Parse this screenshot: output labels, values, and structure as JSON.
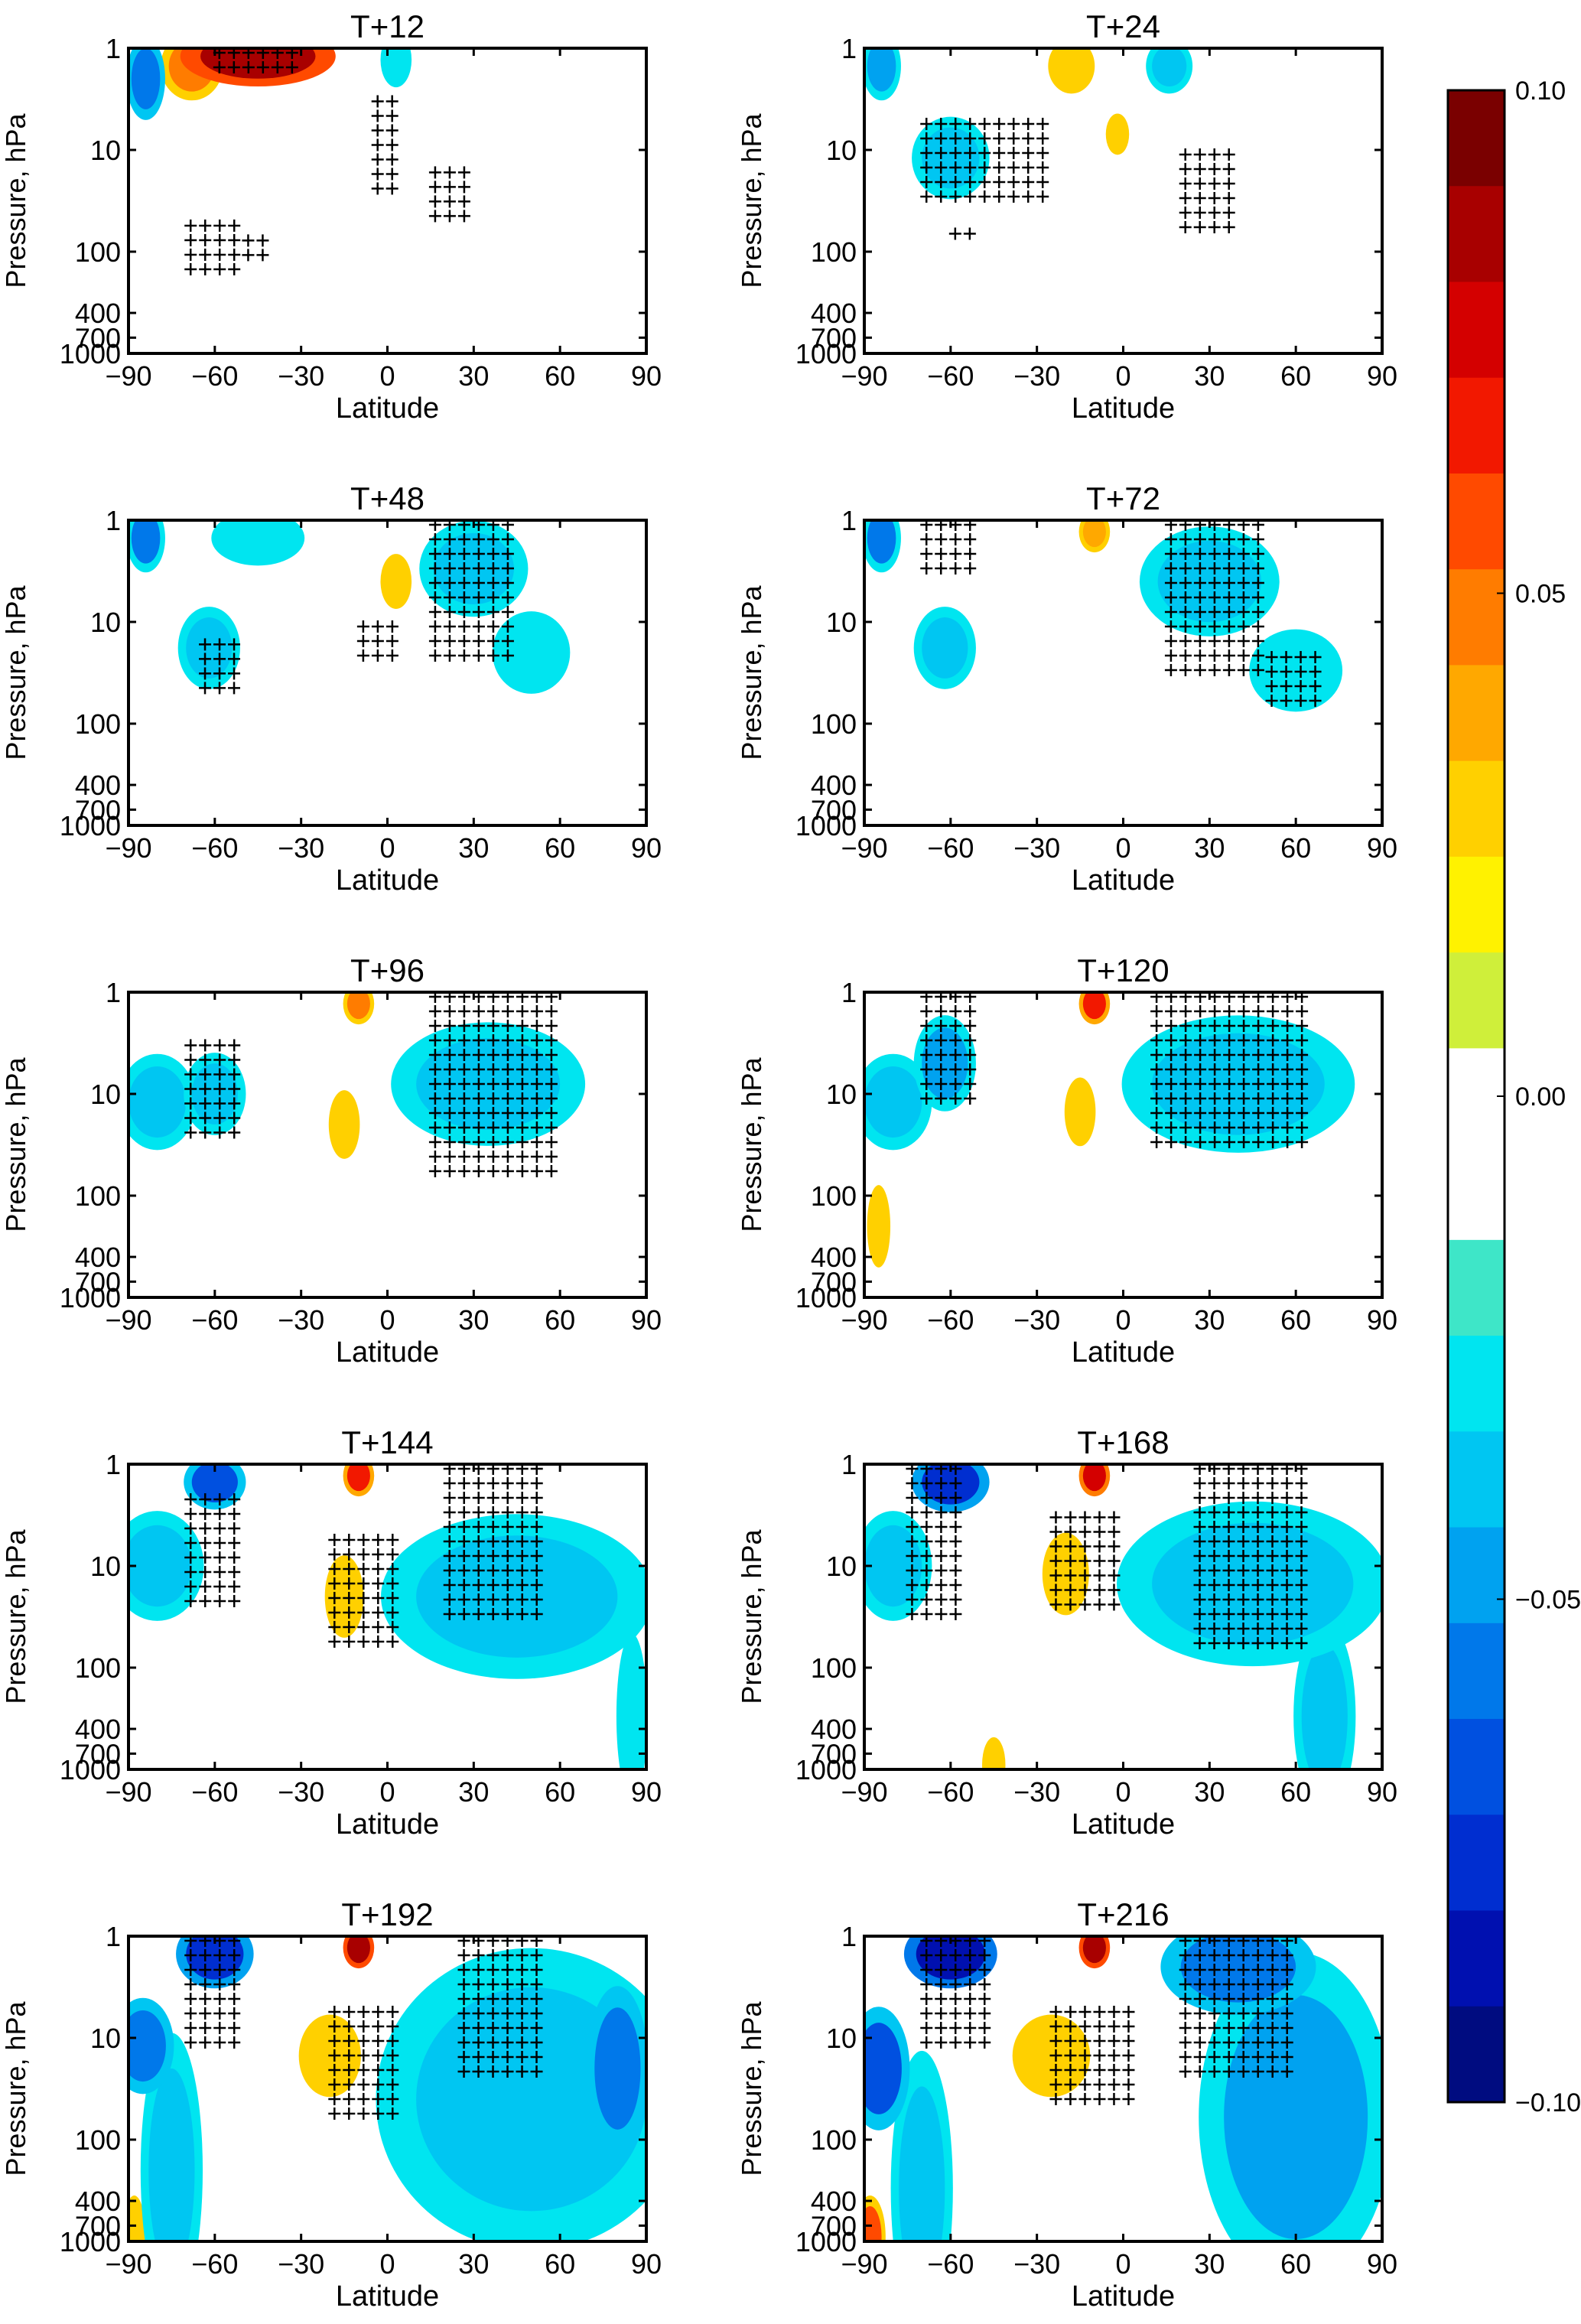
{
  "chart_data": {
    "type": "heatmap",
    "xlabel": "Latitude",
    "ylabel": "Pressure, hPa",
    "xlim": [
      -90,
      90
    ],
    "ylim": [
      1000,
      1
    ],
    "y_scale": "log",
    "x_ticks": [
      "−90",
      "−60",
      "−30",
      "0",
      "30",
      "60",
      "90"
    ],
    "x_tick_values": [
      -90,
      -60,
      -30,
      0,
      30,
      60,
      90
    ],
    "y_ticks": [
      "1",
      "10",
      "100",
      "400",
      "700",
      "1000"
    ],
    "y_tick_values": [
      1,
      10,
      100,
      400,
      700,
      1000
    ],
    "colorbar": {
      "min": -0.1,
      "max": 0.1,
      "ticks": [
        "0.10",
        "0.05",
        "0.00",
        "−0.05",
        "−0.10"
      ],
      "tick_values": [
        0.1,
        0.05,
        0.0,
        -0.05,
        -0.1
      ],
      "colors": [
        "#7a0000",
        "#a80000",
        "#d40000",
        "#f21800",
        "#ff4a00",
        "#ff7c00",
        "#ffa800",
        "#ffd000",
        "#fff200",
        "#cfef3a",
        "#ffffff",
        "#ffffff",
        "#3ee6c8",
        "#00e5f0",
        "#00c6f2",
        "#00a2f0",
        "#0078ea",
        "#0050e0",
        "#002ed0",
        "#0010b0",
        "#000c80"
      ]
    },
    "grid": false,
    "legend_position": "right",
    "panels": [
      {
        "title": "T+12",
        "blobs": [
          {
            "lat": -45,
            "p": 1.2,
            "dlat": 20,
            "dlp": 0.22,
            "v": 0.09
          },
          {
            "lat": -68,
            "p": 1.5,
            "dlat": 8,
            "dlp": 0.25,
            "v": 0.05
          },
          {
            "lat": -84,
            "p": 2,
            "dlat": 5,
            "dlp": 0.3,
            "v": -0.06
          },
          {
            "lat": 3,
            "p": 1.3,
            "dlat": 4,
            "dlp": 0.2,
            "v": -0.03
          }
        ],
        "hatch": [
          {
            "lat0": -60,
            "lat1": -30,
            "p0": 1,
            "p1": 2
          },
          {
            "lat0": -70,
            "lat1": -50,
            "p0": 50,
            "p1": 160
          },
          {
            "lat0": -50,
            "lat1": -40,
            "p0": 70,
            "p1": 110
          },
          {
            "lat0": -5,
            "lat1": 5,
            "p0": 3,
            "p1": 30
          },
          {
            "lat0": 15,
            "lat1": 30,
            "p0": 15,
            "p1": 50
          }
        ]
      },
      {
        "title": "T+24",
        "blobs": [
          {
            "lat": -84,
            "p": 1.5,
            "dlat": 5,
            "dlp": 0.25,
            "v": -0.05
          },
          {
            "lat": -60,
            "p": 12,
            "dlat": 10,
            "dlp": 0.3,
            "v": -0.035
          },
          {
            "lat": -18,
            "p": 1.5,
            "dlat": 6,
            "dlp": 0.2,
            "v": 0.03
          },
          {
            "lat": 16,
            "p": 1.5,
            "dlat": 6,
            "dlp": 0.2,
            "v": -0.035
          },
          {
            "lat": -2,
            "p": 7,
            "dlat": 3,
            "dlp": 0.15,
            "v": 0.03
          }
        ],
        "hatch": [
          {
            "lat0": -70,
            "lat1": -25,
            "p0": 5,
            "p1": 30
          },
          {
            "lat0": 20,
            "lat1": 40,
            "p0": 10,
            "p1": 60
          },
          {
            "lat0": -60,
            "lat1": -50,
            "p0": 60,
            "p1": 90
          }
        ]
      },
      {
        "title": "T+48",
        "blobs": [
          {
            "lat": -84,
            "p": 1.5,
            "dlat": 5,
            "dlp": 0.25,
            "v": -0.055
          },
          {
            "lat": -62,
            "p": 18,
            "dlat": 8,
            "dlp": 0.3,
            "v": -0.035
          },
          {
            "lat": -45,
            "p": 1.5,
            "dlat": 12,
            "dlp": 0.2,
            "v": -0.03
          },
          {
            "lat": 3,
            "p": 4,
            "dlat": 4,
            "dlp": 0.2,
            "v": 0.03
          },
          {
            "lat": 30,
            "p": 3,
            "dlat": 14,
            "dlp": 0.35,
            "v": -0.035
          },
          {
            "lat": 50,
            "p": 20,
            "dlat": 10,
            "dlp": 0.3,
            "v": -0.03
          }
        ],
        "hatch": [
          {
            "lat0": -65,
            "lat1": -50,
            "p0": 15,
            "p1": 60
          },
          {
            "lat0": 15,
            "lat1": 45,
            "p0": 1,
            "p1": 25
          },
          {
            "lat0": -10,
            "lat1": 5,
            "p0": 10,
            "p1": 25
          }
        ]
      },
      {
        "title": "T+72",
        "blobs": [
          {
            "lat": -84,
            "p": 1.5,
            "dlat": 5,
            "dlp": 0.25,
            "v": -0.055
          },
          {
            "lat": -62,
            "p": 18,
            "dlat": 8,
            "dlp": 0.3,
            "v": -0.035
          },
          {
            "lat": -10,
            "p": 1.3,
            "dlat": 4,
            "dlp": 0.15,
            "v": 0.04
          },
          {
            "lat": 30,
            "p": 4,
            "dlat": 18,
            "dlp": 0.4,
            "v": -0.035
          },
          {
            "lat": 60,
            "p": 30,
            "dlat": 12,
            "dlp": 0.3,
            "v": -0.03
          }
        ],
        "hatch": [
          {
            "lat0": -70,
            "lat1": -50,
            "p0": 1,
            "p1": 3
          },
          {
            "lat0": 15,
            "lat1": 50,
            "p0": 1,
            "p1": 30
          },
          {
            "lat0": 50,
            "lat1": 70,
            "p0": 20,
            "p1": 80
          }
        ]
      },
      {
        "title": "T+96",
        "blobs": [
          {
            "lat": -80,
            "p": 12,
            "dlat": 10,
            "dlp": 0.35,
            "v": -0.035
          },
          {
            "lat": -60,
            "p": 10,
            "dlat": 8,
            "dlp": 0.3,
            "v": -0.04
          },
          {
            "lat": -10,
            "p": 1.3,
            "dlat": 4,
            "dlp": 0.15,
            "v": 0.05
          },
          {
            "lat": -15,
            "p": 20,
            "dlat": 4,
            "dlp": 0.25,
            "v": 0.03
          },
          {
            "lat": 35,
            "p": 8,
            "dlat": 25,
            "dlp": 0.45,
            "v": -0.035
          }
        ],
        "hatch": [
          {
            "lat0": -70,
            "lat1": -50,
            "p0": 3,
            "p1": 25
          },
          {
            "lat0": 15,
            "lat1": 60,
            "p0": 1,
            "p1": 60
          }
        ]
      },
      {
        "title": "T+120",
        "blobs": [
          {
            "lat": -80,
            "p": 12,
            "dlat": 10,
            "dlp": 0.35,
            "v": -0.035
          },
          {
            "lat": -62,
            "p": 5,
            "dlat": 8,
            "dlp": 0.35,
            "v": -0.045
          },
          {
            "lat": -10,
            "p": 1.3,
            "dlat": 4,
            "dlp": 0.15,
            "v": 0.07
          },
          {
            "lat": -15,
            "p": 15,
            "dlat": 4,
            "dlp": 0.25,
            "v": 0.03
          },
          {
            "lat": 40,
            "p": 8,
            "dlat": 30,
            "dlp": 0.5,
            "v": -0.035
          },
          {
            "lat": -85,
            "p": 200,
            "dlat": 3,
            "dlp": 0.3,
            "v": 0.03
          }
        ],
        "hatch": [
          {
            "lat0": -70,
            "lat1": -50,
            "p0": 1,
            "p1": 15
          },
          {
            "lat0": 10,
            "lat1": 65,
            "p0": 1,
            "p1": 30
          }
        ]
      },
      {
        "title": "T+144",
        "blobs": [
          {
            "lat": -80,
            "p": 10,
            "dlat": 12,
            "dlp": 0.4,
            "v": -0.035
          },
          {
            "lat": -60,
            "p": 1.5,
            "dlat": 8,
            "dlp": 0.2,
            "v": -0.07
          },
          {
            "lat": -10,
            "p": 1.3,
            "dlat": 4,
            "dlp": 0.15,
            "v": 0.07
          },
          {
            "lat": -15,
            "p": 20,
            "dlat": 5,
            "dlp": 0.3,
            "v": 0.03
          },
          {
            "lat": 45,
            "p": 20,
            "dlat": 35,
            "dlp": 0.6,
            "v": -0.035
          },
          {
            "lat": 85,
            "p": 300,
            "dlat": 4,
            "dlp": 0.6,
            "v": -0.03
          }
        ],
        "hatch": [
          {
            "lat0": -70,
            "lat1": -50,
            "p0": 2,
            "p1": 25
          },
          {
            "lat0": 20,
            "lat1": 55,
            "p0": 1,
            "p1": 30
          },
          {
            "lat0": -20,
            "lat1": 5,
            "p0": 5,
            "p1": 60
          }
        ]
      },
      {
        "title": "T+168",
        "blobs": [
          {
            "lat": -80,
            "p": 10,
            "dlat": 10,
            "dlp": 0.4,
            "v": -0.04
          },
          {
            "lat": -60,
            "p": 1.5,
            "dlat": 10,
            "dlp": 0.22,
            "v": -0.08
          },
          {
            "lat": -10,
            "p": 1.3,
            "dlat": 4,
            "dlp": 0.15,
            "v": 0.08
          },
          {
            "lat": -20,
            "p": 12,
            "dlat": 6,
            "dlp": 0.3,
            "v": 0.03
          },
          {
            "lat": 45,
            "p": 15,
            "dlat": 35,
            "dlp": 0.6,
            "v": -0.04
          },
          {
            "lat": 70,
            "p": 300,
            "dlat": 8,
            "dlp": 0.7,
            "v": -0.035
          },
          {
            "lat": -45,
            "p": 900,
            "dlat": 3,
            "dlp": 0.2,
            "v": 0.03
          }
        ],
        "hatch": [
          {
            "lat0": -75,
            "lat1": -55,
            "p0": 1,
            "p1": 40
          },
          {
            "lat0": 25,
            "lat1": 65,
            "p0": 1,
            "p1": 60
          },
          {
            "lat0": -25,
            "lat1": 0,
            "p0": 3,
            "p1": 25
          }
        ]
      },
      {
        "title": "T+192",
        "blobs": [
          {
            "lat": -85,
            "p": 12,
            "dlat": 8,
            "dlp": 0.35,
            "v": -0.06
          },
          {
            "lat": -60,
            "p": 1.5,
            "dlat": 10,
            "dlp": 0.25,
            "v": -0.08
          },
          {
            "lat": -10,
            "p": 1.3,
            "dlat": 4,
            "dlp": 0.15,
            "v": 0.09
          },
          {
            "lat": -20,
            "p": 15,
            "dlat": 8,
            "dlp": 0.3,
            "v": 0.03
          },
          {
            "lat": 50,
            "p": 40,
            "dlat": 40,
            "dlp": 1.1,
            "v": -0.04
          },
          {
            "lat": 80,
            "p": 20,
            "dlat": 8,
            "dlp": 0.6,
            "v": -0.06
          },
          {
            "lat": -75,
            "p": 200,
            "dlat": 8,
            "dlp": 1.0,
            "v": -0.035
          },
          {
            "lat": -88,
            "p": 900,
            "dlat": 3,
            "dlp": 0.3,
            "v": 0.03
          }
        ],
        "hatch": [
          {
            "lat0": -70,
            "lat1": -50,
            "p0": 1,
            "p1": 15
          },
          {
            "lat0": 25,
            "lat1": 55,
            "p0": 1,
            "p1": 25
          },
          {
            "lat0": -20,
            "lat1": 5,
            "p0": 5,
            "p1": 70
          }
        ]
      },
      {
        "title": "T+216",
        "blobs": [
          {
            "lat": -85,
            "p": 20,
            "dlat": 8,
            "dlp": 0.45,
            "v": -0.07
          },
          {
            "lat": -60,
            "p": 1.5,
            "dlat": 12,
            "dlp": 0.25,
            "v": -0.09
          },
          {
            "lat": -10,
            "p": 1.3,
            "dlat": 4,
            "dlp": 0.15,
            "v": 0.09
          },
          {
            "lat": -25,
            "p": 15,
            "dlat": 10,
            "dlp": 0.3,
            "v": 0.03
          },
          {
            "lat": 40,
            "p": 2,
            "dlat": 20,
            "dlp": 0.35,
            "v": -0.06
          },
          {
            "lat": 60,
            "p": 60,
            "dlat": 25,
            "dlp": 1.2,
            "v": -0.045
          },
          {
            "lat": -88,
            "p": 900,
            "dlat": 4,
            "dlp": 0.3,
            "v": 0.055
          },
          {
            "lat": -70,
            "p": 300,
            "dlat": 8,
            "dlp": 1.0,
            "v": -0.04
          }
        ],
        "hatch": [
          {
            "lat0": -70,
            "lat1": -45,
            "p0": 1,
            "p1": 15
          },
          {
            "lat0": 20,
            "lat1": 60,
            "p0": 1,
            "p1": 25
          },
          {
            "lat0": -25,
            "lat1": 5,
            "p0": 5,
            "p1": 50
          }
        ]
      }
    ]
  }
}
